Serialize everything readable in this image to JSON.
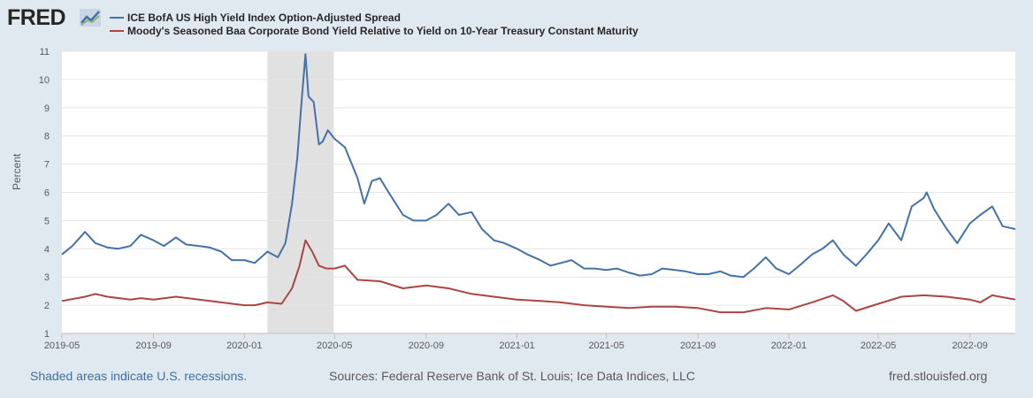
{
  "brand": {
    "logo_text": "FRED",
    "logo_mark_icon": "fred-graph-icon"
  },
  "footer": {
    "recession_note": "Shaded areas indicate U.S. recessions.",
    "sources": "Sources: Federal Reserve Bank of St. Louis; Ice Data Indices, LLC",
    "site": "fred.stlouisfed.org"
  },
  "colors": {
    "series1": "#4572a7",
    "series2": "#aa4643",
    "recession": "#e1e1e1"
  },
  "chart_data": {
    "type": "line",
    "ylabel": "Percent",
    "ylim": [
      1,
      11
    ],
    "xlim": [
      "2019-05-01",
      "2022-11-01"
    ],
    "y_ticks": [
      1,
      2,
      3,
      4,
      5,
      6,
      7,
      8,
      9,
      10,
      11
    ],
    "x_ticks": [
      "2019-05",
      "2019-09",
      "2020-01",
      "2020-05",
      "2020-09",
      "2021-01",
      "2021-05",
      "2021-09",
      "2022-01",
      "2022-05",
      "2022-09"
    ],
    "grid": "horizontal",
    "legend_position": "top-left",
    "recessions": [
      {
        "start": "2020-02-01",
        "end": "2020-04-30"
      }
    ],
    "series": [
      {
        "name": "ICE BofA US High Yield Index Option-Adjusted Spread",
        "points": [
          [
            "2019-05-01",
            3.8
          ],
          [
            "2019-05-15",
            4.1
          ],
          [
            "2019-06-01",
            4.6
          ],
          [
            "2019-06-15",
            4.2
          ],
          [
            "2019-07-01",
            4.05
          ],
          [
            "2019-07-15",
            4.0
          ],
          [
            "2019-08-01",
            4.1
          ],
          [
            "2019-08-15",
            4.5
          ],
          [
            "2019-09-01",
            4.3
          ],
          [
            "2019-09-15",
            4.1
          ],
          [
            "2019-10-01",
            4.4
          ],
          [
            "2019-10-15",
            4.15
          ],
          [
            "2019-11-01",
            4.1
          ],
          [
            "2019-11-15",
            4.05
          ],
          [
            "2019-12-01",
            3.9
          ],
          [
            "2019-12-15",
            3.6
          ],
          [
            "2020-01-01",
            3.6
          ],
          [
            "2020-01-15",
            3.5
          ],
          [
            "2020-02-01",
            3.9
          ],
          [
            "2020-02-15",
            3.7
          ],
          [
            "2020-02-25",
            4.2
          ],
          [
            "2020-03-05",
            5.6
          ],
          [
            "2020-03-12",
            7.2
          ],
          [
            "2020-03-18",
            9.3
          ],
          [
            "2020-03-23",
            10.9
          ],
          [
            "2020-03-27",
            9.4
          ],
          [
            "2020-04-03",
            9.2
          ],
          [
            "2020-04-10",
            7.7
          ],
          [
            "2020-04-15",
            7.8
          ],
          [
            "2020-04-22",
            8.2
          ],
          [
            "2020-05-01",
            7.9
          ],
          [
            "2020-05-15",
            7.6
          ],
          [
            "2020-06-01",
            6.5
          ],
          [
            "2020-06-10",
            5.6
          ],
          [
            "2020-06-20",
            6.4
          ],
          [
            "2020-07-01",
            6.5
          ],
          [
            "2020-07-15",
            5.9
          ],
          [
            "2020-08-01",
            5.2
          ],
          [
            "2020-08-15",
            5.0
          ],
          [
            "2020-09-01",
            5.0
          ],
          [
            "2020-09-15",
            5.2
          ],
          [
            "2020-10-01",
            5.6
          ],
          [
            "2020-10-15",
            5.2
          ],
          [
            "2020-11-01",
            5.3
          ],
          [
            "2020-11-15",
            4.7
          ],
          [
            "2020-12-01",
            4.3
          ],
          [
            "2020-12-15",
            4.2
          ],
          [
            "2021-01-01",
            4.0
          ],
          [
            "2021-01-15",
            3.8
          ],
          [
            "2021-02-01",
            3.6
          ],
          [
            "2021-02-15",
            3.4
          ],
          [
            "2021-03-01",
            3.5
          ],
          [
            "2021-03-15",
            3.6
          ],
          [
            "2021-04-01",
            3.3
          ],
          [
            "2021-04-15",
            3.3
          ],
          [
            "2021-05-01",
            3.25
          ],
          [
            "2021-05-15",
            3.3
          ],
          [
            "2021-06-01",
            3.15
          ],
          [
            "2021-06-15",
            3.05
          ],
          [
            "2021-07-01",
            3.1
          ],
          [
            "2021-07-15",
            3.3
          ],
          [
            "2021-08-01",
            3.25
          ],
          [
            "2021-08-15",
            3.2
          ],
          [
            "2021-09-01",
            3.1
          ],
          [
            "2021-09-15",
            3.1
          ],
          [
            "2021-10-01",
            3.2
          ],
          [
            "2021-10-15",
            3.05
          ],
          [
            "2021-11-01",
            3.0
          ],
          [
            "2021-11-15",
            3.3
          ],
          [
            "2021-12-01",
            3.7
          ],
          [
            "2021-12-15",
            3.3
          ],
          [
            "2022-01-01",
            3.1
          ],
          [
            "2022-01-15",
            3.4
          ],
          [
            "2022-02-01",
            3.8
          ],
          [
            "2022-02-15",
            4.0
          ],
          [
            "2022-03-01",
            4.3
          ],
          [
            "2022-03-15",
            3.8
          ],
          [
            "2022-04-01",
            3.4
          ],
          [
            "2022-04-15",
            3.8
          ],
          [
            "2022-05-01",
            4.3
          ],
          [
            "2022-05-15",
            4.9
          ],
          [
            "2022-06-01",
            4.3
          ],
          [
            "2022-06-15",
            5.5
          ],
          [
            "2022-07-01",
            5.8
          ],
          [
            "2022-07-05",
            6.0
          ],
          [
            "2022-07-15",
            5.4
          ],
          [
            "2022-08-01",
            4.7
          ],
          [
            "2022-08-15",
            4.2
          ],
          [
            "2022-09-01",
            4.9
          ],
          [
            "2022-09-15",
            5.2
          ],
          [
            "2022-10-01",
            5.5
          ],
          [
            "2022-10-15",
            4.8
          ],
          [
            "2022-11-01",
            4.7
          ]
        ]
      },
      {
        "name": "Moody's Seasoned Baa Corporate Bond Yield Relative to Yield on 10-Year Treasury Constant Maturity",
        "points": [
          [
            "2019-05-01",
            2.15
          ],
          [
            "2019-06-01",
            2.3
          ],
          [
            "2019-06-15",
            2.4
          ],
          [
            "2019-07-01",
            2.3
          ],
          [
            "2019-08-01",
            2.2
          ],
          [
            "2019-08-15",
            2.25
          ],
          [
            "2019-09-01",
            2.2
          ],
          [
            "2019-10-01",
            2.3
          ],
          [
            "2019-11-01",
            2.2
          ],
          [
            "2019-12-01",
            2.1
          ],
          [
            "2020-01-01",
            2.0
          ],
          [
            "2020-01-15",
            2.0
          ],
          [
            "2020-02-01",
            2.1
          ],
          [
            "2020-02-20",
            2.05
          ],
          [
            "2020-03-05",
            2.6
          ],
          [
            "2020-03-15",
            3.4
          ],
          [
            "2020-03-23",
            4.3
          ],
          [
            "2020-04-01",
            3.9
          ],
          [
            "2020-04-10",
            3.4
          ],
          [
            "2020-04-20",
            3.3
          ],
          [
            "2020-05-01",
            3.3
          ],
          [
            "2020-05-15",
            3.4
          ],
          [
            "2020-06-01",
            2.9
          ],
          [
            "2020-07-01",
            2.85
          ],
          [
            "2020-08-01",
            2.6
          ],
          [
            "2020-09-01",
            2.7
          ],
          [
            "2020-10-01",
            2.6
          ],
          [
            "2020-11-01",
            2.4
          ],
          [
            "2020-12-01",
            2.3
          ],
          [
            "2021-01-01",
            2.2
          ],
          [
            "2021-02-01",
            2.15
          ],
          [
            "2021-03-01",
            2.1
          ],
          [
            "2021-04-01",
            2.0
          ],
          [
            "2021-05-01",
            1.95
          ],
          [
            "2021-06-01",
            1.9
          ],
          [
            "2021-07-01",
            1.95
          ],
          [
            "2021-08-01",
            1.95
          ],
          [
            "2021-09-01",
            1.9
          ],
          [
            "2021-10-01",
            1.75
          ],
          [
            "2021-11-01",
            1.75
          ],
          [
            "2021-12-01",
            1.9
          ],
          [
            "2022-01-01",
            1.85
          ],
          [
            "2022-02-01",
            2.1
          ],
          [
            "2022-03-01",
            2.35
          ],
          [
            "2022-03-15",
            2.15
          ],
          [
            "2022-04-01",
            1.8
          ],
          [
            "2022-05-01",
            2.05
          ],
          [
            "2022-06-01",
            2.3
          ],
          [
            "2022-07-01",
            2.35
          ],
          [
            "2022-08-01",
            2.3
          ],
          [
            "2022-09-01",
            2.2
          ],
          [
            "2022-09-15",
            2.1
          ],
          [
            "2022-10-01",
            2.35
          ],
          [
            "2022-11-01",
            2.2
          ]
        ]
      }
    ]
  }
}
